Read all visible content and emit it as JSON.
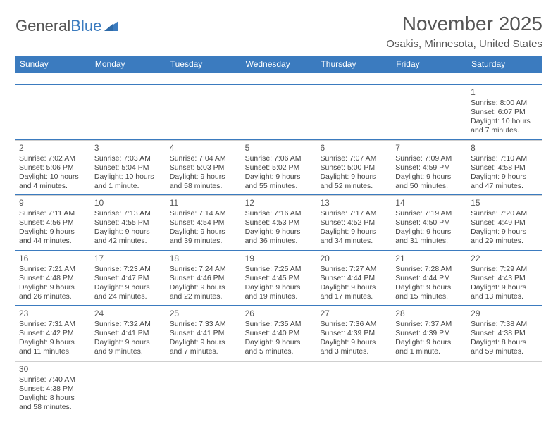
{
  "brand": {
    "part1": "General",
    "part2": "Blue"
  },
  "title": "November 2025",
  "location": "Osakis, Minnesota, United States",
  "colors": {
    "header_bg": "#3b7bbf",
    "header_text": "#ffffff",
    "rule": "#3b7bbf",
    "text": "#444444",
    "page_bg": "#ffffff"
  },
  "day_names": [
    "Sunday",
    "Monday",
    "Tuesday",
    "Wednesday",
    "Thursday",
    "Friday",
    "Saturday"
  ],
  "weeks": [
    [
      null,
      null,
      null,
      null,
      null,
      null,
      {
        "n": "1",
        "sunrise": "8:00 AM",
        "sunset": "6:07 PM",
        "daylight": "10 hours and 7 minutes."
      }
    ],
    [
      {
        "n": "2",
        "sunrise": "7:02 AM",
        "sunset": "5:06 PM",
        "daylight": "10 hours and 4 minutes."
      },
      {
        "n": "3",
        "sunrise": "7:03 AM",
        "sunset": "5:04 PM",
        "daylight": "10 hours and 1 minute."
      },
      {
        "n": "4",
        "sunrise": "7:04 AM",
        "sunset": "5:03 PM",
        "daylight": "9 hours and 58 minutes."
      },
      {
        "n": "5",
        "sunrise": "7:06 AM",
        "sunset": "5:02 PM",
        "daylight": "9 hours and 55 minutes."
      },
      {
        "n": "6",
        "sunrise": "7:07 AM",
        "sunset": "5:00 PM",
        "daylight": "9 hours and 52 minutes."
      },
      {
        "n": "7",
        "sunrise": "7:09 AM",
        "sunset": "4:59 PM",
        "daylight": "9 hours and 50 minutes."
      },
      {
        "n": "8",
        "sunrise": "7:10 AM",
        "sunset": "4:58 PM",
        "daylight": "9 hours and 47 minutes."
      }
    ],
    [
      {
        "n": "9",
        "sunrise": "7:11 AM",
        "sunset": "4:56 PM",
        "daylight": "9 hours and 44 minutes."
      },
      {
        "n": "10",
        "sunrise": "7:13 AM",
        "sunset": "4:55 PM",
        "daylight": "9 hours and 42 minutes."
      },
      {
        "n": "11",
        "sunrise": "7:14 AM",
        "sunset": "4:54 PM",
        "daylight": "9 hours and 39 minutes."
      },
      {
        "n": "12",
        "sunrise": "7:16 AM",
        "sunset": "4:53 PM",
        "daylight": "9 hours and 36 minutes."
      },
      {
        "n": "13",
        "sunrise": "7:17 AM",
        "sunset": "4:52 PM",
        "daylight": "9 hours and 34 minutes."
      },
      {
        "n": "14",
        "sunrise": "7:19 AM",
        "sunset": "4:50 PM",
        "daylight": "9 hours and 31 minutes."
      },
      {
        "n": "15",
        "sunrise": "7:20 AM",
        "sunset": "4:49 PM",
        "daylight": "9 hours and 29 minutes."
      }
    ],
    [
      {
        "n": "16",
        "sunrise": "7:21 AM",
        "sunset": "4:48 PM",
        "daylight": "9 hours and 26 minutes."
      },
      {
        "n": "17",
        "sunrise": "7:23 AM",
        "sunset": "4:47 PM",
        "daylight": "9 hours and 24 minutes."
      },
      {
        "n": "18",
        "sunrise": "7:24 AM",
        "sunset": "4:46 PM",
        "daylight": "9 hours and 22 minutes."
      },
      {
        "n": "19",
        "sunrise": "7:25 AM",
        "sunset": "4:45 PM",
        "daylight": "9 hours and 19 minutes."
      },
      {
        "n": "20",
        "sunrise": "7:27 AM",
        "sunset": "4:44 PM",
        "daylight": "9 hours and 17 minutes."
      },
      {
        "n": "21",
        "sunrise": "7:28 AM",
        "sunset": "4:44 PM",
        "daylight": "9 hours and 15 minutes."
      },
      {
        "n": "22",
        "sunrise": "7:29 AM",
        "sunset": "4:43 PM",
        "daylight": "9 hours and 13 minutes."
      }
    ],
    [
      {
        "n": "23",
        "sunrise": "7:31 AM",
        "sunset": "4:42 PM",
        "daylight": "9 hours and 11 minutes."
      },
      {
        "n": "24",
        "sunrise": "7:32 AM",
        "sunset": "4:41 PM",
        "daylight": "9 hours and 9 minutes."
      },
      {
        "n": "25",
        "sunrise": "7:33 AM",
        "sunset": "4:41 PM",
        "daylight": "9 hours and 7 minutes."
      },
      {
        "n": "26",
        "sunrise": "7:35 AM",
        "sunset": "4:40 PM",
        "daylight": "9 hours and 5 minutes."
      },
      {
        "n": "27",
        "sunrise": "7:36 AM",
        "sunset": "4:39 PM",
        "daylight": "9 hours and 3 minutes."
      },
      {
        "n": "28",
        "sunrise": "7:37 AM",
        "sunset": "4:39 PM",
        "daylight": "9 hours and 1 minute."
      },
      {
        "n": "29",
        "sunrise": "7:38 AM",
        "sunset": "4:38 PM",
        "daylight": "8 hours and 59 minutes."
      }
    ],
    [
      {
        "n": "30",
        "sunrise": "7:40 AM",
        "sunset": "4:38 PM",
        "daylight": "8 hours and 58 minutes."
      },
      null,
      null,
      null,
      null,
      null,
      null
    ]
  ],
  "labels": {
    "sunrise": "Sunrise:",
    "sunset": "Sunset:",
    "daylight": "Daylight:"
  }
}
